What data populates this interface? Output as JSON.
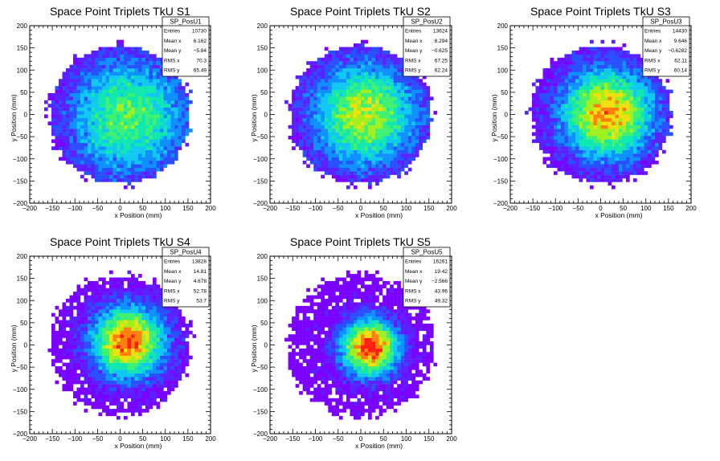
{
  "chart_data": [
    {
      "type": "heatmap",
      "title": "Space Point Triplets TkU S1",
      "xlabel": "x Position (mm)",
      "ylabel": "y Position (mm)",
      "xlim": [
        -200,
        200
      ],
      "ylim": [
        -200,
        200
      ],
      "xticks": [
        "−200",
        "−150",
        "−100",
        "−50",
        "0",
        "50",
        "100",
        "150",
        "200"
      ],
      "yticks": [
        "−200",
        "−150",
        "−100",
        "−50",
        "0",
        "50",
        "100",
        "150",
        "200"
      ],
      "stats": {
        "name": "SP_PosU1",
        "rows": [
          {
            "label": "Entries",
            "value": "10730"
          },
          {
            "label": "Mean x",
            "value": "6.162"
          },
          {
            "label": "Mean y",
            "value": "−5.84"
          },
          {
            "label": "RMS x",
            "value": "70.3"
          },
          {
            "label": "RMS y",
            "value": "65.49"
          }
        ]
      },
      "distribution": {
        "shape": "disk",
        "center_x": 5,
        "center_y": -5,
        "radius": 155,
        "sigma": 95,
        "peak_level": 0.62,
        "bias_x": 40
      }
    },
    {
      "type": "heatmap",
      "title": "Space Point Triplets TkU S2",
      "xlabel": "x Position (mm)",
      "ylabel": "y Position (mm)",
      "xlim": [
        -200,
        200
      ],
      "ylim": [
        -200,
        200
      ],
      "xticks": [
        "−200",
        "−150",
        "−100",
        "−50",
        "0",
        "50",
        "100",
        "150",
        "200"
      ],
      "yticks": [
        "−200",
        "−150",
        "−100",
        "−50",
        "0",
        "50",
        "100",
        "150",
        "200"
      ],
      "stats": {
        "name": "SP_PosU2",
        "rows": [
          {
            "label": "Entries",
            "value": "13624"
          },
          {
            "label": "Mean x",
            "value": "8.294"
          },
          {
            "label": "Mean y",
            "value": "−0.625"
          },
          {
            "label": "RMS x",
            "value": "67.25"
          },
          {
            "label": "RMS y",
            "value": "62.24"
          }
        ]
      },
      "distribution": {
        "shape": "disk",
        "center_x": 8,
        "center_y": 0,
        "radius": 155,
        "sigma": 85,
        "peak_level": 0.72,
        "bias_x": 0
      }
    },
    {
      "type": "heatmap",
      "title": "Space Point Triplets TkU S3",
      "xlabel": "x Position (mm)",
      "ylabel": "y Position (mm)",
      "xlim": [
        -200,
        200
      ],
      "ylim": [
        -200,
        200
      ],
      "xticks": [
        "−200",
        "−150",
        "−100",
        "−50",
        "0",
        "50",
        "100",
        "150",
        "200"
      ],
      "yticks": [
        "−200",
        "−150",
        "−100",
        "−50",
        "0",
        "50",
        "100",
        "150",
        "200"
      ],
      "stats": {
        "name": "SP_PosU3",
        "rows": [
          {
            "label": "Entries",
            "value": "14430"
          },
          {
            "label": "Mean x",
            "value": "9.646"
          },
          {
            "label": "Mean y",
            "value": "−0.6282"
          },
          {
            "label": "RMS x",
            "value": "62.11"
          },
          {
            "label": "RMS y",
            "value": "60.14"
          }
        ]
      },
      "distribution": {
        "shape": "disk",
        "center_x": 15,
        "center_y": 2,
        "radius": 155,
        "sigma": 75,
        "peak_level": 0.85,
        "bias_x": 0
      }
    },
    {
      "type": "heatmap",
      "title": "Space Point Triplets TkU S4",
      "xlabel": "x Position (mm)",
      "ylabel": "y Position (mm)",
      "xlim": [
        -200,
        200
      ],
      "ylim": [
        -200,
        200
      ],
      "xticks": [
        "−200",
        "−150",
        "−100",
        "−50",
        "0",
        "50",
        "100",
        "150",
        "200"
      ],
      "yticks": [
        "−200",
        "−150",
        "−100",
        "−50",
        "0",
        "50",
        "100",
        "150",
        "200"
      ],
      "stats": {
        "name": "SP_PosU4",
        "rows": [
          {
            "label": "Entries",
            "value": "13828"
          },
          {
            "label": "Mean x",
            "value": "14.81"
          },
          {
            "label": "Mean y",
            "value": "4.678"
          },
          {
            "label": "RMS x",
            "value": "52.78"
          },
          {
            "label": "RMS y",
            "value": "53.7"
          }
        ]
      },
      "distribution": {
        "shape": "disk",
        "center_x": 18,
        "center_y": 8,
        "radius": 155,
        "sigma": 58,
        "peak_level": 0.92,
        "bias_x": 0
      }
    },
    {
      "type": "heatmap",
      "title": "Space Point Triplets TkU S5",
      "xlabel": "x Position (mm)",
      "ylabel": "y Position (mm)",
      "xlim": [
        -200,
        200
      ],
      "ylim": [
        -200,
        200
      ],
      "xticks": [
        "−200",
        "−150",
        "−100",
        "−50",
        "0",
        "50",
        "100",
        "150",
        "200"
      ],
      "yticks": [
        "−200",
        "−150",
        "−100",
        "−50",
        "0",
        "50",
        "100",
        "150",
        "200"
      ],
      "stats": {
        "name": "SP_PosU5",
        "rows": [
          {
            "label": "Entries",
            "value": "16261"
          },
          {
            "label": "Mean x",
            "value": "19.42"
          },
          {
            "label": "Mean y",
            "value": "−2.566"
          },
          {
            "label": "RMS x",
            "value": "43.96"
          },
          {
            "label": "RMS y",
            "value": "49.32"
          }
        ]
      },
      "distribution": {
        "shape": "disk",
        "center_x": 20,
        "center_y": -5,
        "radius": 160,
        "sigma": 45,
        "peak_level": 1.0,
        "bias_x": 0
      }
    }
  ],
  "palette": [
    "#7a00ff",
    "#5a20ff",
    "#2850ff",
    "#1090ff",
    "#10c8f0",
    "#10e8b0",
    "#40f070",
    "#a0f020",
    "#f0e010",
    "#ff8010",
    "#ff2010"
  ]
}
